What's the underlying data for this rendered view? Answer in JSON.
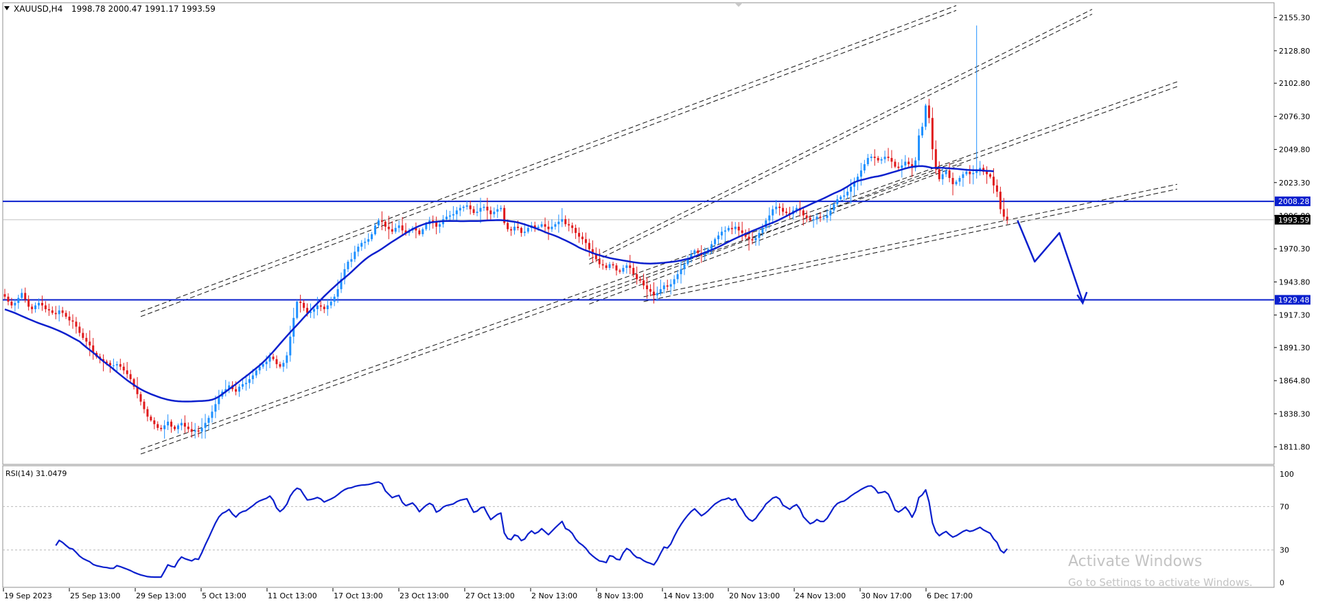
{
  "chart_data": [
    {
      "type": "candlestick",
      "header": {
        "symbol": "XAUUSD,H4",
        "ohlc": "1998.78 2000.47 1991.17 1993.59",
        "open": 1998.78,
        "high": 2000.47,
        "low": 1991.17,
        "close": 1993.59
      },
      "ylim": [
        1800,
        2165
      ],
      "y_ticks": [
        "2155.30",
        "2128.80",
        "2102.80",
        "2076.30",
        "2049.80",
        "2023.30",
        "1996.80",
        "1970.30",
        "1943.80",
        "1917.30",
        "1891.30",
        "1864.80",
        "1838.30",
        "1811.80"
      ],
      "price_labels": [
        {
          "text": "2008.28",
          "value": 2008.28,
          "style": "blue"
        },
        {
          "text": "1993.59",
          "value": 1993.59,
          "style": "black"
        },
        {
          "text": "1929.48",
          "value": 1929.48,
          "style": "blue"
        }
      ],
      "x_labels": [
        "19 Sep 2023",
        "25 Sep 13:00",
        "29 Sep 13:00",
        "5 Oct 13:00",
        "11 Oct 13:00",
        "17 Oct 13:00",
        "23 Oct 13:00",
        "27 Oct 13:00",
        "2 Nov 13:00",
        "8 Nov 13:00",
        "14 Nov 13:00",
        "20 Nov 13:00",
        "24 Nov 13:00",
        "30 Nov 17:00",
        "6 Dec 17:00"
      ],
      "close_series": [
        1932,
        1928,
        1925,
        1927,
        1931,
        1935,
        1930,
        1924,
        1922,
        1925,
        1927,
        1925,
        1922,
        1921,
        1919,
        1918,
        1921,
        1919,
        1916,
        1913,
        1912,
        1908,
        1903,
        1899,
        1896,
        1893,
        1887,
        1884,
        1882,
        1880,
        1879,
        1877,
        1877,
        1878,
        1876,
        1873,
        1870,
        1866,
        1860,
        1854,
        1848,
        1842,
        1836,
        1833,
        1830,
        1827,
        1826,
        1829,
        1832,
        1828,
        1826,
        1829,
        1831,
        1828,
        1826,
        1824,
        1825,
        1824,
        1827,
        1831,
        1835,
        1840,
        1846,
        1852,
        1856,
        1858,
        1861,
        1858,
        1856,
        1860,
        1862,
        1863,
        1866,
        1869,
        1873,
        1876,
        1878,
        1880,
        1884,
        1882,
        1878,
        1876,
        1879,
        1885,
        1900,
        1915,
        1928,
        1927,
        1923,
        1919,
        1920,
        1922,
        1925,
        1924,
        1922,
        1925,
        1928,
        1932,
        1938,
        1946,
        1954,
        1960,
        1962,
        1968,
        1972,
        1975,
        1976,
        1978,
        1982,
        1989,
        1993,
        1992,
        1988,
        1986,
        1984,
        1987,
        1989,
        1985,
        1983,
        1985,
        1987,
        1985,
        1982,
        1986,
        1990,
        1993,
        1992,
        1988,
        1990,
        1994,
        1996,
        1997,
        1998,
        2001,
        2003,
        2004,
        2005,
        2002,
        1999,
        2000,
        2003,
        2004,
        2001,
        1998,
        2000,
        2002,
        2003,
        1991,
        1986,
        1985,
        1988,
        1987,
        1983,
        1984,
        1987,
        1989,
        1987,
        1988,
        1990,
        1988,
        1986,
        1988,
        1990,
        1992,
        1994,
        1990,
        1989,
        1987,
        1983,
        1980,
        1978,
        1975,
        1970,
        1966,
        1962,
        1958,
        1957,
        1955,
        1958,
        1957,
        1953,
        1952,
        1955,
        1957,
        1955,
        1950,
        1946,
        1945,
        1941,
        1938,
        1936,
        1933,
        1935,
        1938,
        1941,
        1940,
        1942,
        1946,
        1950,
        1954,
        1958,
        1962,
        1966,
        1969,
        1967,
        1965,
        1967,
        1970,
        1974,
        1978,
        1981,
        1984,
        1985,
        1987,
        1986,
        1988,
        1985,
        1983,
        1980,
        1978,
        1977,
        1979,
        1983,
        1987,
        1993,
        1997,
        2002,
        2004,
        2003,
        2000,
        1999,
        1998,
        2001,
        2003,
        2001,
        1997,
        1995,
        1993,
        1994,
        1996,
        1995,
        1995,
        1997,
        2001,
        2006,
        2010,
        2012,
        2013,
        2016,
        2020,
        2024,
        2028,
        2033,
        2038,
        2043,
        2044,
        2043,
        2041,
        2042,
        2044,
        2043,
        2040,
        2036,
        2035,
        2037,
        2040,
        2038,
        2035,
        2041,
        2061,
        2068,
        2085,
        2075,
        2050,
        2034,
        2026,
        2030,
        2033,
        2027,
        2022,
        2024,
        2027,
        2030,
        2032,
        2030,
        2031,
        2033,
        2035,
        2032,
        2030,
        2028,
        2021,
        2016,
        2002,
        1996,
        1993.59
      ],
      "high_spikes": [
        {
          "index": 286,
          "high": 2149
        }
      ],
      "moving_average_shown": true,
      "horizontal_levels": [
        2008.28,
        1929.48
      ],
      "trend_channels": [
        {
          "from_index": 40,
          "from_price": 1808,
          "to_index": 345,
          "to_price": 2102,
          "style": "dashed-double"
        },
        {
          "from_index": 40,
          "from_price": 1918,
          "to_index": 280,
          "to_price": 2163,
          "style": "dashed-double"
        },
        {
          "from_index": 172,
          "from_price": 1928,
          "to_index": 282,
          "to_price": 2040,
          "style": "dashed-double"
        },
        {
          "from_index": 172,
          "from_price": 1960,
          "to_index": 320,
          "to_price": 2160,
          "style": "dashed-double"
        },
        {
          "from_index": 188,
          "from_price": 1930,
          "to_index": 345,
          "to_price": 2020,
          "style": "dashed-double"
        }
      ],
      "projection_path": "price drawn down from 1993 to 1960, bounce to 1983, then arrow down to the 1929.48 support"
    },
    {
      "type": "line",
      "label": "RSI(14) 31.0479",
      "ylim": [
        0,
        100
      ],
      "y_ticks": [
        "100",
        "70",
        "30",
        "0"
      ],
      "reference_levels": [
        70,
        30
      ],
      "note": "oscillator values derived from the close_series above, last value 31.0479",
      "last_value": 31.0479
    }
  ],
  "watermark": {
    "line1": "Activate Windows",
    "line2": "Go to Settings to activate Windows."
  },
  "colors": {
    "bull": "#1e90ff",
    "bear": "#e0191b",
    "ma_and_levels": "#0a1fcd",
    "axis_text": "#000000",
    "grid_dotted": "#b9b9b9"
  }
}
